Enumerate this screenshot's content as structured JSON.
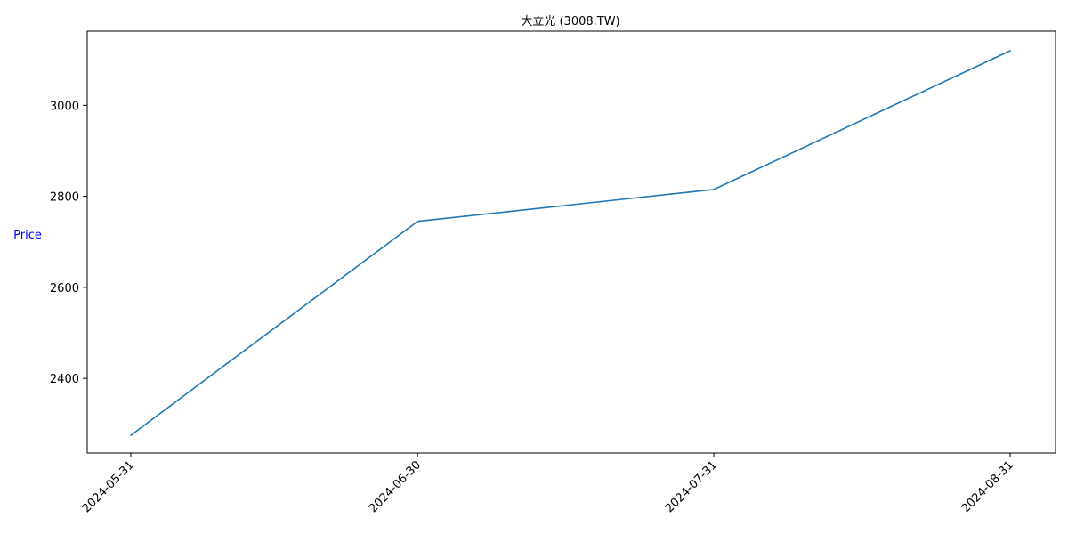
{
  "chart_data": {
    "type": "line",
    "title": "大立光 (3008.TW)",
    "xlabel": "",
    "ylabel": "Price",
    "ylabel_color": "#0000ff",
    "x": [
      "2024-05-31",
      "2024-06-30",
      "2024-07-31",
      "2024-08-31"
    ],
    "series": [
      {
        "color": "#1f77b4",
        "values": [
          2275,
          2745,
          2815,
          3120
        ]
      }
    ],
    "yticks": [
      2400,
      2600,
      2800,
      3000
    ],
    "ylim": [
      2236,
      3163
    ],
    "grid": false,
    "legend": "none"
  }
}
